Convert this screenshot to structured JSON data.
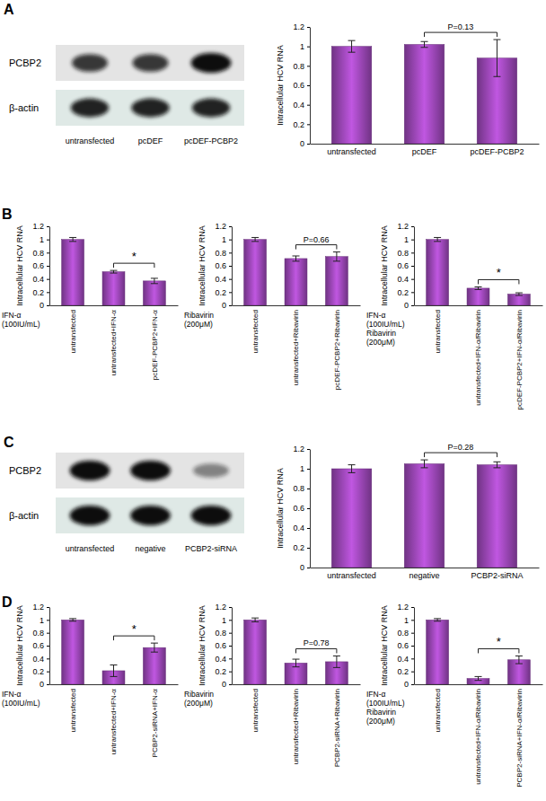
{
  "panel_labels": [
    "A",
    "B",
    "C",
    "D"
  ],
  "blots": [
    {
      "rows": [
        "PCBP2",
        "β-actin"
      ],
      "lanes": [
        "untransfected",
        "pcDEF",
        "pcDEF-PCBP2"
      ],
      "intensity": [
        [
          0.8,
          0.8,
          1.0
        ],
        [
          0.9,
          0.9,
          0.9
        ]
      ]
    },
    {
      "rows": [
        "PCBP2",
        "β-actin"
      ],
      "lanes": [
        "untransfected",
        "negative",
        "PCBP2-siRNA"
      ],
      "intensity": [
        [
          1.0,
          1.0,
          0.45
        ],
        [
          1.0,
          1.0,
          1.0
        ]
      ]
    }
  ],
  "chart_data": [
    {
      "type": "bar",
      "ylabel": "Intracellular HCV RNA",
      "categories": [
        "untransfected",
        "pcDEF",
        "pcDEF-PCBP2"
      ],
      "values": [
        1.0,
        1.02,
        0.88
      ],
      "errors": [
        0.06,
        0.03,
        0.19
      ],
      "color": "#8b3fa3",
      "ylim": [
        0,
        1.2
      ],
      "yticks": [
        0,
        0.2,
        0.4,
        0.6,
        0.8,
        1,
        1.2
      ],
      "grid": false,
      "annotations": [
        {
          "text": "P=0.13",
          "from": 1,
          "to": 2
        }
      ]
    },
    {
      "type": "bar",
      "ylabel": "Intracellular HCV RNA",
      "categories": [
        "untransfected",
        "untransfected+IFN-α",
        "pcDEF-PCBP2+IFN-α"
      ],
      "values": [
        1.0,
        0.51,
        0.37
      ],
      "errors": [
        0.03,
        0.02,
        0.04
      ],
      "color": "#8b3fa3",
      "ylim": [
        0,
        1.2
      ],
      "yticks": [
        0,
        0.2,
        0.4,
        0.6,
        0.8,
        1,
        1.2
      ],
      "grid": false,
      "treatment": [
        "IFN-α",
        "(100IU/mL)"
      ],
      "annotations": [
        {
          "text": "*",
          "from": 1,
          "to": 2
        }
      ]
    },
    {
      "type": "bar",
      "ylabel": "Intracellular HCV RNA",
      "categories": [
        "untransfected",
        "untransfected+Ribavirin",
        "pcDEF-PCBP2+Ribavirin"
      ],
      "values": [
        1.0,
        0.71,
        0.74
      ],
      "errors": [
        0.03,
        0.04,
        0.07
      ],
      "color": "#8b3fa3",
      "ylim": [
        0,
        1.2
      ],
      "yticks": [
        0,
        0.2,
        0.4,
        0.6,
        0.8,
        1,
        1.2
      ],
      "grid": false,
      "treatment": [
        "Ribavirin",
        "(200μM)"
      ],
      "annotations": [
        {
          "text": "P=0.66",
          "from": 1,
          "to": 2
        }
      ]
    },
    {
      "type": "bar",
      "ylabel": "Intracellular HCV RNA",
      "categories": [
        "untransfected",
        "untransfected+IFN-α/Ribavirin",
        "pcDEF-PCBP2+IFN-α/Ribavirin"
      ],
      "values": [
        1.0,
        0.26,
        0.17
      ],
      "errors": [
        0.03,
        0.02,
        0.02
      ],
      "color": "#8b3fa3",
      "ylim": [
        0,
        1.2
      ],
      "yticks": [
        0,
        0.2,
        0.4,
        0.6,
        0.8,
        1,
        1.2
      ],
      "grid": false,
      "treatment": [
        "IFN-α",
        "(100IU/mL)",
        "Ribavirin",
        "(200μM)"
      ],
      "annotations": [
        {
          "text": "*",
          "from": 1,
          "to": 2
        }
      ]
    },
    {
      "type": "bar",
      "ylabel": "Intracellular HCV RNA",
      "categories": [
        "untransfected",
        "negative",
        "PCBP2-siRNA"
      ],
      "values": [
        1.0,
        1.05,
        1.04
      ],
      "errors": [
        0.04,
        0.04,
        0.03
      ],
      "color": "#8b3fa3",
      "ylim": [
        0,
        1.2
      ],
      "yticks": [
        0,
        0.2,
        0.4,
        0.6,
        0.8,
        1,
        1.2
      ],
      "grid": false,
      "annotations": [
        {
          "text": "P=0.28",
          "from": 1,
          "to": 2
        }
      ]
    },
    {
      "type": "bar",
      "ylabel": "Intracellular HCV RNA",
      "categories": [
        "untransfected",
        "untransfected+IFN-α",
        "PCBP2-siRNA+IFN-α"
      ],
      "values": [
        1.0,
        0.21,
        0.57
      ],
      "errors": [
        0.02,
        0.09,
        0.07
      ],
      "color": "#8b3fa3",
      "ylim": [
        0,
        1.2
      ],
      "yticks": [
        0,
        0.2,
        0.4,
        0.6,
        0.8,
        1,
        1.2
      ],
      "grid": false,
      "treatment": [
        "IFN-α",
        "(100IU/mL)"
      ],
      "annotations": [
        {
          "text": "*",
          "from": 1,
          "to": 2
        }
      ]
    },
    {
      "type": "bar",
      "ylabel": "Intracellular HCV RNA",
      "categories": [
        "untransfected",
        "untransfected+Ribavirin",
        "PCBP2-siRNA+Ribavirin"
      ],
      "values": [
        1.0,
        0.33,
        0.35
      ],
      "errors": [
        0.03,
        0.06,
        0.09
      ],
      "color": "#8b3fa3",
      "ylim": [
        0,
        1.2
      ],
      "yticks": [
        0,
        0.2,
        0.4,
        0.6,
        0.8,
        1,
        1.2
      ],
      "grid": false,
      "treatment": [
        "Ribavirin",
        "(200μM)"
      ],
      "annotations": [
        {
          "text": "P=0.78",
          "from": 1,
          "to": 2
        }
      ]
    },
    {
      "type": "bar",
      "ylabel": "Intracellular HCV RNA",
      "categories": [
        "untransfected",
        "untransfected+IFN-α/Ribavirin",
        "PCBP2-siRNA+IFN-α/Ribavirin"
      ],
      "values": [
        1.0,
        0.09,
        0.38
      ],
      "errors": [
        0.02,
        0.03,
        0.06
      ],
      "color": "#8b3fa3",
      "ylim": [
        0,
        1.2
      ],
      "yticks": [
        0,
        0.2,
        0.4,
        0.6,
        0.8,
        1,
        1.2
      ],
      "grid": false,
      "treatment": [
        "IFN-α",
        "(100IU/mL)",
        "Ribavirin",
        "(200μM)"
      ],
      "annotations": [
        {
          "text": "*",
          "from": 1,
          "to": 2
        }
      ]
    }
  ]
}
